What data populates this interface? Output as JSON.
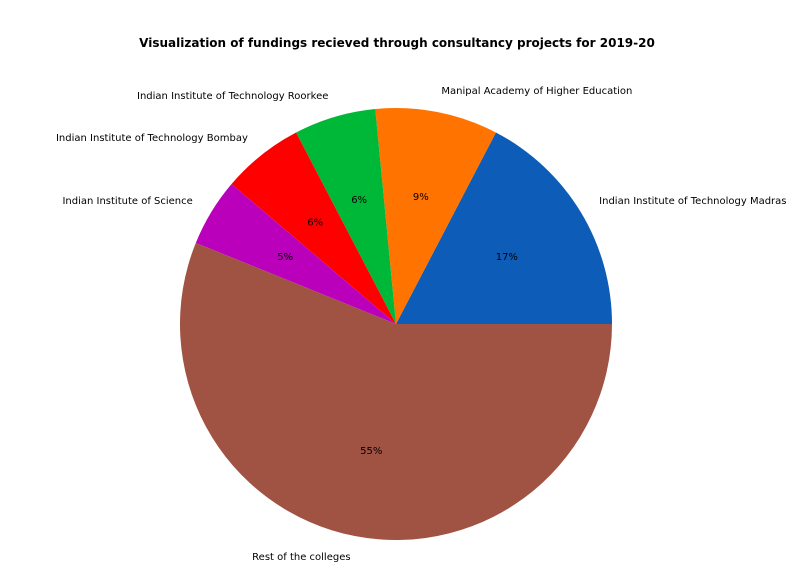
{
  "chart_data": {
    "type": "pie",
    "title": "Visualization of fundings recieved through consultancy projects for 2019-20",
    "categories": [
      "Indian Institute of Technology Madras",
      "Manipal Academy of Higher Education",
      "Indian Institute of Technology Roorkee",
      "Indian Institute of Technology Bombay",
      "Indian Institute of Science",
      "Rest of the colleges"
    ],
    "values": [
      17,
      9,
      6,
      6,
      5,
      55
    ],
    "percent_labels": [
      "17%",
      "9%",
      "6%",
      "6%",
      "5%",
      "55%"
    ],
    "colors": [
      "#0c5cb8",
      "#ff7400",
      "#00b838",
      "#ff0000",
      "#bb00bb",
      "#a05243"
    ],
    "start_angle_deg": 0,
    "direction": "counterclockwise",
    "legend": "none"
  }
}
